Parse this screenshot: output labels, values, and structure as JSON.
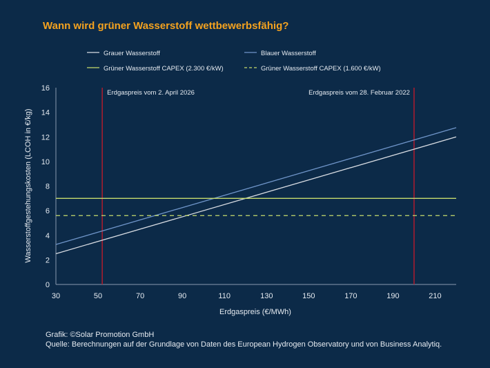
{
  "title": "Wann wird grüner Wasserstoff wettbewerbsfähig?",
  "colors": {
    "background": "#0c2a48",
    "title": "#f4a21f",
    "grey_line": "#d9dde3",
    "blue_line": "#6f95c9",
    "green_line": "#c7dc6c",
    "vline": "#b01c2e",
    "axis": "#8a9bb0",
    "text": "#e6ebf1"
  },
  "chart_data": {
    "type": "line",
    "xlabel": "Erdgaspreis (€/MWh)",
    "ylabel": "Wasserstoffgestehungskosten (LCOH in €/kg)",
    "xlim": [
      30,
      220
    ],
    "ylim": [
      0,
      16
    ],
    "xticks": [
      30,
      50,
      70,
      90,
      110,
      130,
      150,
      170,
      190,
      210
    ],
    "yticks": [
      0,
      2,
      4,
      6,
      8,
      10,
      12,
      14,
      16
    ],
    "grid": false,
    "legend_position": "top",
    "series": [
      {
        "name": "Grauer Wasserstoff",
        "color_key": "grey_line",
        "dashed": false,
        "x": [
          30,
          220
        ],
        "y": [
          2.5,
          12.0
        ]
      },
      {
        "name": "Blauer Wasserstoff",
        "color_key": "blue_line",
        "dashed": false,
        "x": [
          30,
          220
        ],
        "y": [
          3.25,
          12.75
        ]
      },
      {
        "name": "Grüner Wasserstoff CAPEX (2.300 €/kW)",
        "color_key": "green_line",
        "dashed": false,
        "x": [
          30,
          220
        ],
        "y": [
          7.0,
          7.0
        ]
      },
      {
        "name": "Grüner Wasserstoff CAPEX (1.600 €/kW)",
        "color_key": "green_line",
        "dashed": true,
        "x": [
          30,
          220
        ],
        "y": [
          5.6,
          5.6
        ]
      }
    ],
    "vlines": [
      {
        "x": 52,
        "label": "Erdgaspreis vom 2. April 2026",
        "label_side": "right"
      },
      {
        "x": 200,
        "label": "Erdgaspreis vom 28. Februar 2022",
        "label_side": "left"
      }
    ]
  },
  "footer": {
    "credit": "Grafik: ©Solar Promotion GmbH",
    "source": "Quelle: Berechnungen auf der Grundlage von Daten des European Hydrogen Observatory und von Business Analytiq."
  }
}
